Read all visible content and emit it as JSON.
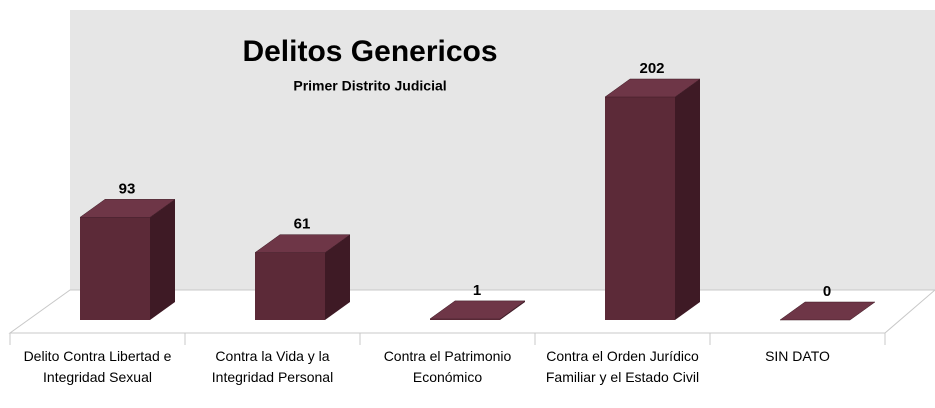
{
  "chart_data": {
    "type": "bar3d",
    "title": "Delitos Genericos",
    "subtitle": "Primer Distrito Judicial",
    "categories": [
      "Delito Contra Libertad e Integridad Sexual",
      "Contra la Vida y la Integridad Personal",
      "Contra el Patrimonio Económico",
      "Contra el Orden Jurídico Familiar y el Estado Civil",
      "SIN DATO"
    ],
    "values": [
      93,
      61,
      1,
      202,
      0
    ],
    "color": "#5c2a38"
  }
}
